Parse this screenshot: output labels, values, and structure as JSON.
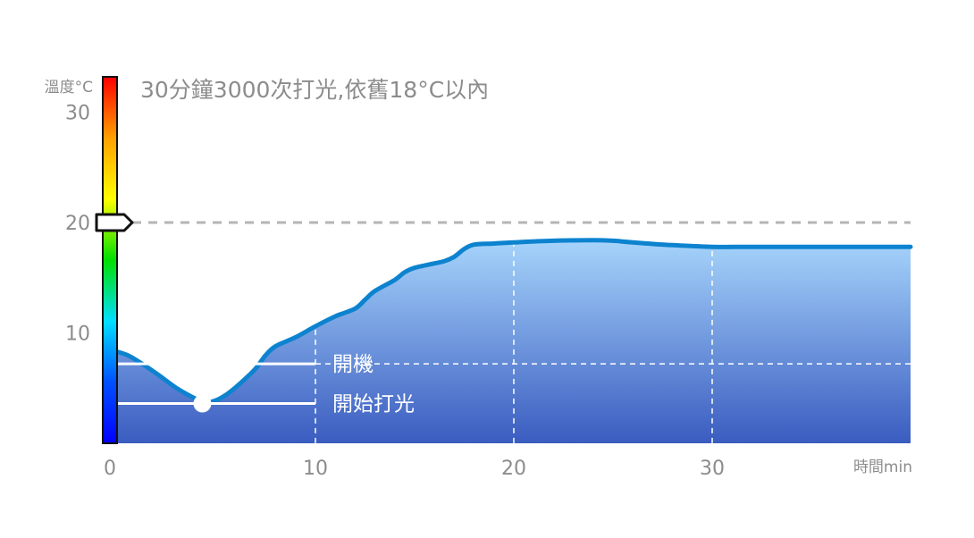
{
  "chart_data": {
    "type": "area",
    "title": "30分鐘3000次打光,依舊18°C以內",
    "ylabel": "溫度°C",
    "xlabel": "時間min",
    "xlim": [
      0,
      40
    ],
    "ylim": [
      0,
      34
    ],
    "x_ticks": [
      0,
      10,
      20,
      30
    ],
    "y_ticks": [
      10,
      20,
      30
    ],
    "reference_line": {
      "y": 20,
      "style": "dashed",
      "color": "#b5b5b5"
    },
    "grid": {
      "vertical": [
        10,
        20,
        30
      ],
      "style": "dashed",
      "color": "#ffffff"
    },
    "colorbar": {
      "range": [
        0,
        35
      ],
      "colors": [
        "#ff0000",
        "#ffa000",
        "#ffff00",
        "#00e000",
        "#00e0ff",
        "#0050ff",
        "#0000ff"
      ],
      "marker_value": 20
    },
    "annotations": [
      {
        "label": "開機",
        "y": 7.2,
        "x_end": 10
      },
      {
        "label": "開始打光",
        "y": 3.6,
        "x_end": 10,
        "point_x": 4.3
      }
    ],
    "series": [
      {
        "color": "#0d83cf",
        "fill_top": "#a6d4fb",
        "fill_bottom": "#3a5cc0",
        "x": [
          0,
          0.5,
          1,
          2,
          3,
          4,
          4.5,
          5,
          5.5,
          6,
          6.5,
          7,
          7.5,
          8,
          9,
          10,
          11,
          12,
          12.5,
          13,
          14,
          14.5,
          15,
          16,
          16.5,
          17,
          17.5,
          18,
          19,
          20,
          22,
          24,
          25,
          26,
          28,
          30,
          32,
          35,
          38,
          40
        ],
        "y": [
          8.3,
          8.0,
          7.5,
          6.3,
          5.0,
          4.0,
          3.7,
          3.9,
          4.4,
          5.1,
          5.9,
          6.8,
          8.0,
          8.8,
          9.6,
          10.6,
          11.5,
          12.2,
          13.0,
          13.8,
          14.8,
          15.5,
          15.9,
          16.3,
          16.5,
          16.9,
          17.6,
          18.0,
          18.1,
          18.2,
          18.35,
          18.4,
          18.35,
          18.2,
          17.95,
          17.8,
          17.8,
          17.8,
          17.8,
          17.8
        ]
      }
    ]
  }
}
